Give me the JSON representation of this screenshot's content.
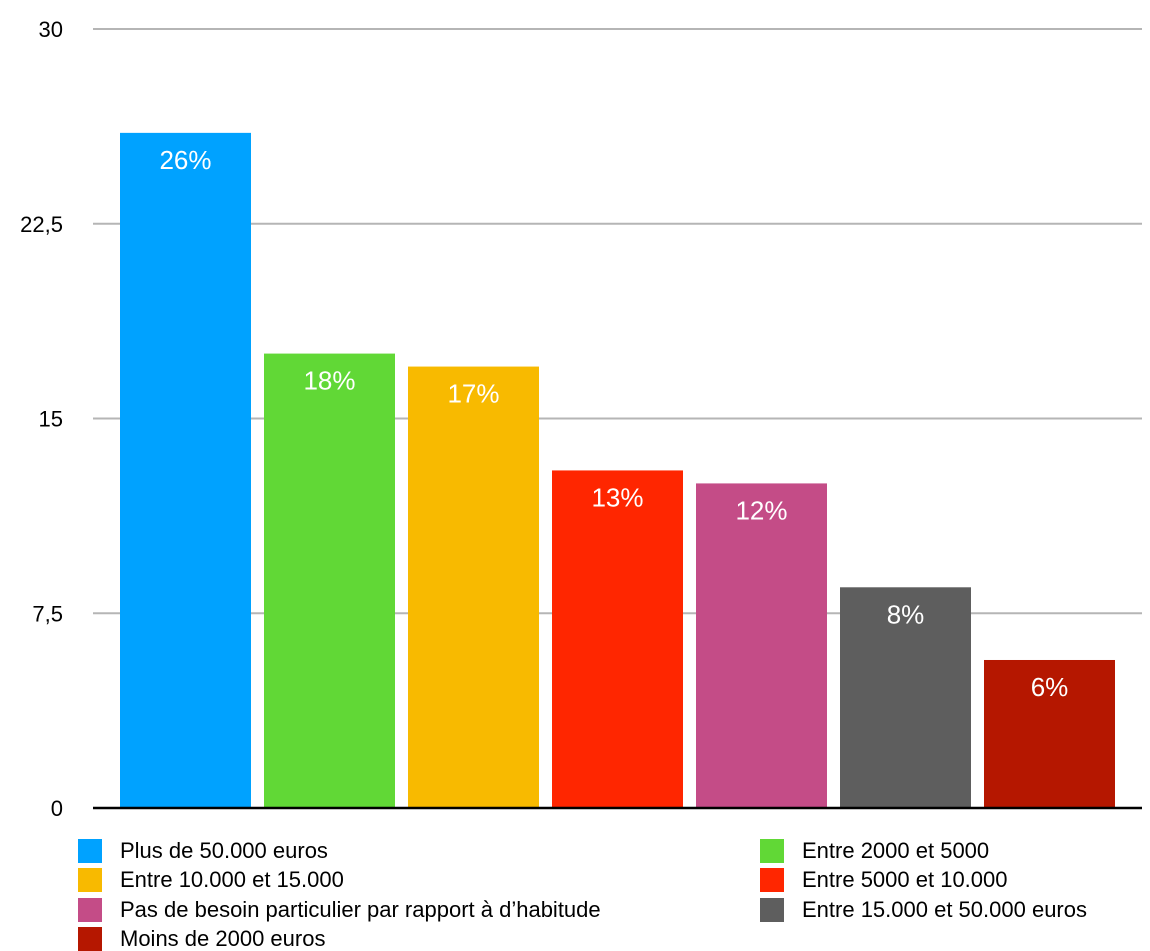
{
  "chart_data": {
    "type": "bar",
    "categories": [
      "Plus de 50.000 euros",
      "Entre 2000 et 5000",
      "Entre 10.000 et 15.000",
      "Entre 5000 et 10.000",
      "Pas de besoin particulier par rapport à d’habitude",
      "Entre 15.000 et 50.000 euros",
      "Moins de 2000 euros"
    ],
    "values": [
      26,
      17.5,
      17,
      13,
      12.5,
      8.5,
      5.7
    ],
    "data_labels": [
      "26%",
      "18%",
      "17%",
      "13%",
      "12%",
      "8%",
      "6%"
    ],
    "colors": [
      "#00A2FF",
      "#61D836",
      "#F8BA00",
      "#FF2600",
      "#C44C87",
      "#5E5E5E",
      "#B51700"
    ],
    "ylim": [
      0,
      30
    ],
    "yticks": [
      0,
      7.5,
      15,
      22.5,
      30
    ],
    "ytick_labels": [
      "0",
      "7,5",
      "15",
      "22,5",
      "30"
    ],
    "grid": true,
    "legend_position": "bottom",
    "title": "",
    "xlabel": "",
    "ylabel": ""
  },
  "legend": {
    "items": [
      {
        "label": "Plus de 50.000 euros",
        "color": "#00A2FF"
      },
      {
        "label": "Entre 2000 et 5000",
        "color": "#61D836"
      },
      {
        "label": "Entre 10.000 et 15.000",
        "color": "#F8BA00"
      },
      {
        "label": "Entre 5000 et 10.000",
        "color": "#FF2600"
      },
      {
        "label": "Pas de besoin particulier par rapport à d’habitude",
        "color": "#C44C87"
      },
      {
        "label": "Entre 15.000 et 50.000 euros",
        "color": "#5E5E5E"
      },
      {
        "label": "Moins de 2000 euros",
        "color": "#B51700"
      }
    ]
  }
}
